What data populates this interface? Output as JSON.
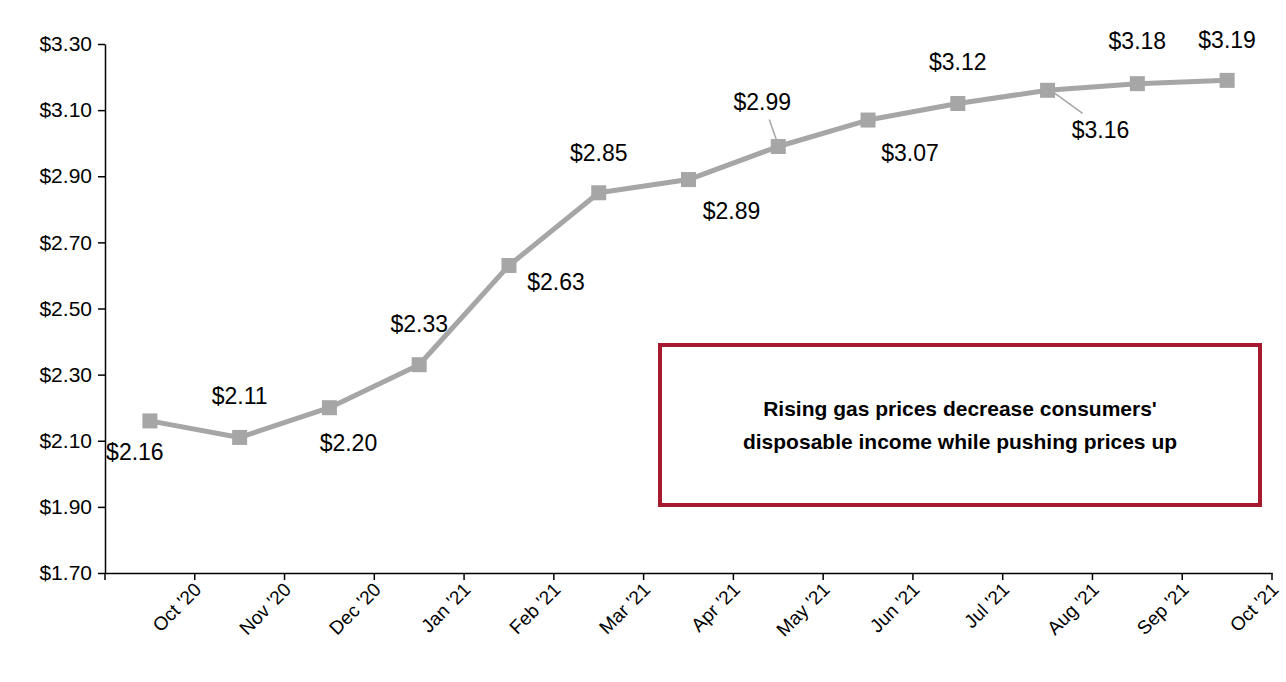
{
  "chart_data": {
    "type": "line",
    "categories": [
      "Oct '20",
      "Nov '20",
      "Dec '20",
      "Jan '21",
      "Feb '21",
      "Mar '21",
      "Apr '21",
      "May '21",
      "Jun '21",
      "Jul '21",
      "Aug '21",
      "Sep '21",
      "Oct '21"
    ],
    "values": [
      2.16,
      2.11,
      2.2,
      2.33,
      2.63,
      2.85,
      2.89,
      2.99,
      3.07,
      3.12,
      3.16,
      3.18,
      3.19
    ],
    "value_labels": [
      "$2.16",
      "$2.11",
      "$2.20",
      "$2.33",
      "$2.63",
      "$2.85",
      "$2.89",
      "$2.99",
      "$3.07",
      "$3.12",
      "$3.16",
      "$3.18",
      "$3.19"
    ],
    "color": "#a6a6a6",
    "marker": "square",
    "data_labels": true,
    "grid": false,
    "ylim": [
      1.7,
      3.3
    ],
    "yticks": [
      {
        "value": 1.7,
        "label": "$1.70"
      },
      {
        "value": 1.9,
        "label": "$1.90"
      },
      {
        "value": 2.1,
        "label": "$2.10"
      },
      {
        "value": 2.3,
        "label": "$2.30"
      },
      {
        "value": 2.5,
        "label": "$2.50"
      },
      {
        "value": 2.7,
        "label": "$2.70"
      },
      {
        "value": 2.9,
        "label": "$2.90"
      },
      {
        "value": 3.1,
        "label": "$3.10"
      },
      {
        "value": 3.3,
        "label": "$3.30"
      }
    ],
    "annotation": [
      "Rising gas prices decrease consumers'",
      "disposable income while pushing prices up"
    ]
  }
}
